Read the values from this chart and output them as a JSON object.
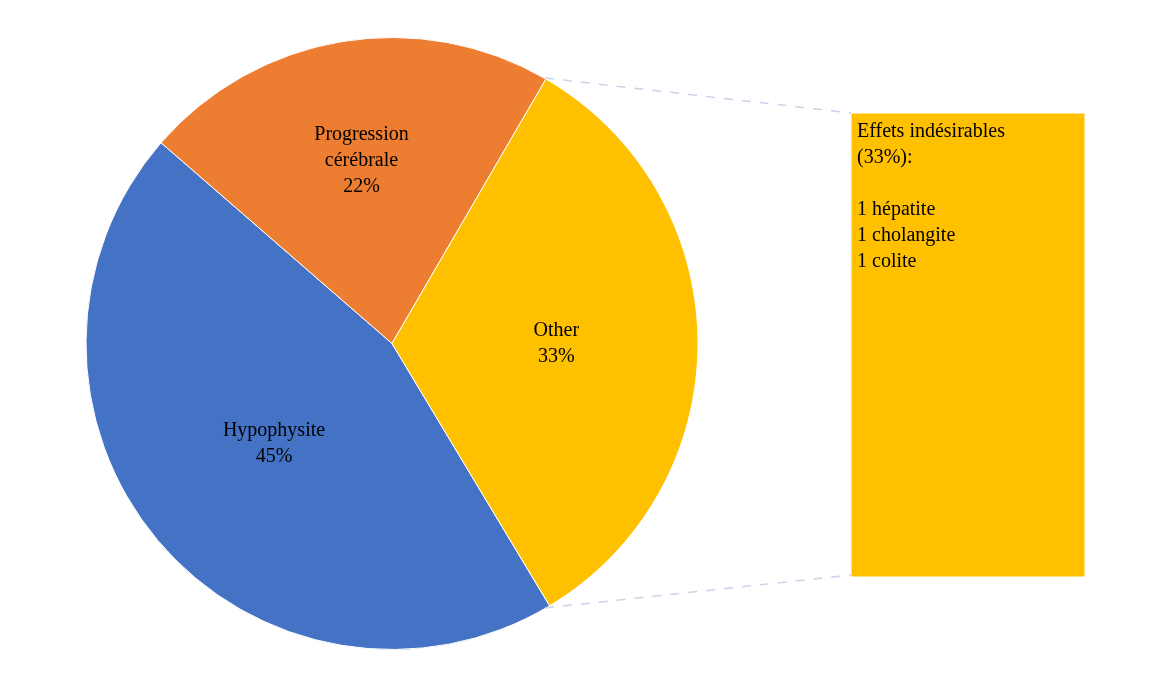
{
  "chart_data": {
    "type": "pie",
    "categories": [
      "Hypophysite",
      "Progression cérébrale",
      "Other"
    ],
    "values": [
      45,
      22,
      33
    ],
    "value_labels": [
      "45%",
      "22%",
      "33%"
    ],
    "colors": [
      "#4472c4",
      "#ed7d31",
      "#ffc000"
    ],
    "annotations": [
      "Effets indésirables\n(33%):\n\n1 hépatite\n1 cholangite\n1 colite"
    ],
    "legend": false
  }
}
